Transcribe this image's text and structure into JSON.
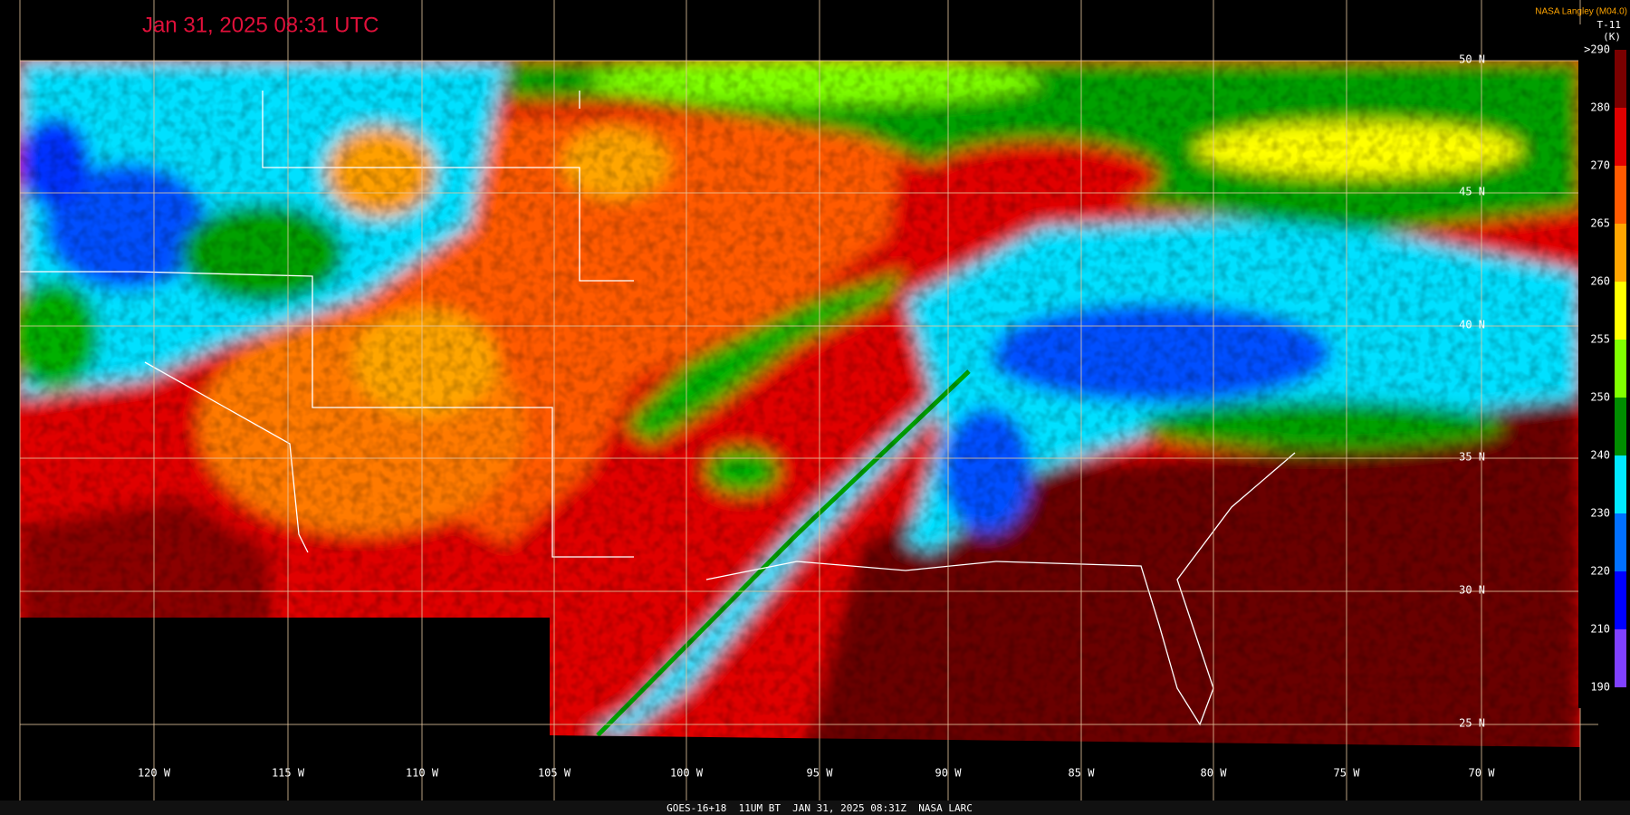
{
  "header": {
    "title": "Jan 31, 2025 08:31 UTC",
    "credit": "NASA Langley (M04.0)"
  },
  "colorbar": {
    "title": "T-11",
    "unit": "(K)",
    "labels": [
      ">290",
      "280",
      "270",
      "265",
      "260",
      "255",
      "250",
      "240",
      "230",
      "220",
      "210",
      "190"
    ],
    "colors": [
      "#7a0000",
      "#e00000",
      "#ff5a00",
      "#ffa500",
      "#ffff00",
      "#80ff00",
      "#008c00",
      "#00e8ff",
      "#0070ff",
      "#0000ff",
      "#8040ff"
    ]
  },
  "grid": {
    "latitude_labels": [
      "50 N",
      "45 N",
      "40 N",
      "35 N",
      "30 N",
      "25 N"
    ],
    "longitude_labels": [
      "120 W",
      "115 W",
      "110 W",
      "105 W",
      "100 W",
      "95 W",
      "90 W",
      "85 W",
      "80 W",
      "75 W",
      "70 W"
    ]
  },
  "footer": {
    "caption": "GOES-16+18  11UM BT  JAN 31, 2025 08:31Z  NASA LARC"
  }
}
